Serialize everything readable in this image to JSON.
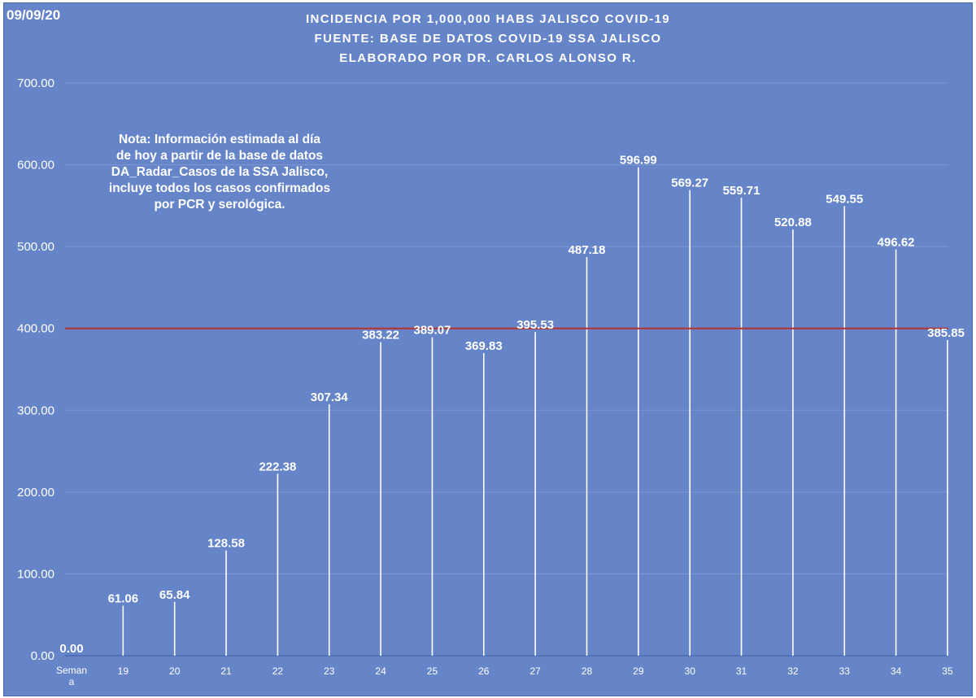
{
  "date": "09/09/20",
  "title_lines": [
    "INCIDENCIA POR 1,000,000 HABS JALISCO COVID-19",
    "FUENTE: BASE DE DATOS COVID-19 SSA JALISCO",
    "ELABORADO POR DR. CARLOS ALONSO R."
  ],
  "note_lines": [
    "Nota: Información estimada al día",
    "de hoy a partir de la base de datos",
    "DA_Radar_Casos de la SSA Jalisco,",
    "incluye todos los casos confirmados",
    "por PCR y serológica."
  ],
  "colors": {
    "background": "#6685c9",
    "gridline": "#7f97d2",
    "bar": "#ffffff",
    "reference_line": "#b03a3a",
    "text": "#ffffff"
  },
  "chart_data": {
    "type": "bar",
    "title": "INCIDENCIA POR 1,000,000 HABS JALISCO COVID-19",
    "xlabel": "",
    "ylabel": "",
    "categories": [
      "Seman a",
      "19",
      "20",
      "21",
      "22",
      "23",
      "24",
      "25",
      "26",
      "27",
      "28",
      "29",
      "30",
      "31",
      "32",
      "33",
      "34",
      "35"
    ],
    "values": [
      0,
      61.06,
      65.84,
      128.58,
      222.38,
      307.34,
      383.22,
      389.07,
      369.83,
      395.53,
      487.18,
      596.99,
      569.27,
      559.71,
      520.88,
      549.55,
      496.62,
      385.85
    ],
    "value_labels": [
      "0.00",
      "61.06",
      "65.84",
      "128.58",
      "222.38",
      "307.34",
      "383.22",
      "389.07",
      "369.83",
      "395.53",
      "487.18",
      "596.99",
      "569.27",
      "559.71",
      "520.88",
      "549.55",
      "496.62",
      "385.85"
    ],
    "ylim": [
      0,
      700
    ],
    "yticks": [
      0,
      100,
      200,
      300,
      400,
      500,
      600,
      700
    ],
    "ytick_labels": [
      "0.00",
      "100.00",
      "200.00",
      "300.00",
      "400.00",
      "500.00",
      "600.00",
      "700.00"
    ],
    "reference_line": 400,
    "grid": true,
    "legend": "none"
  }
}
